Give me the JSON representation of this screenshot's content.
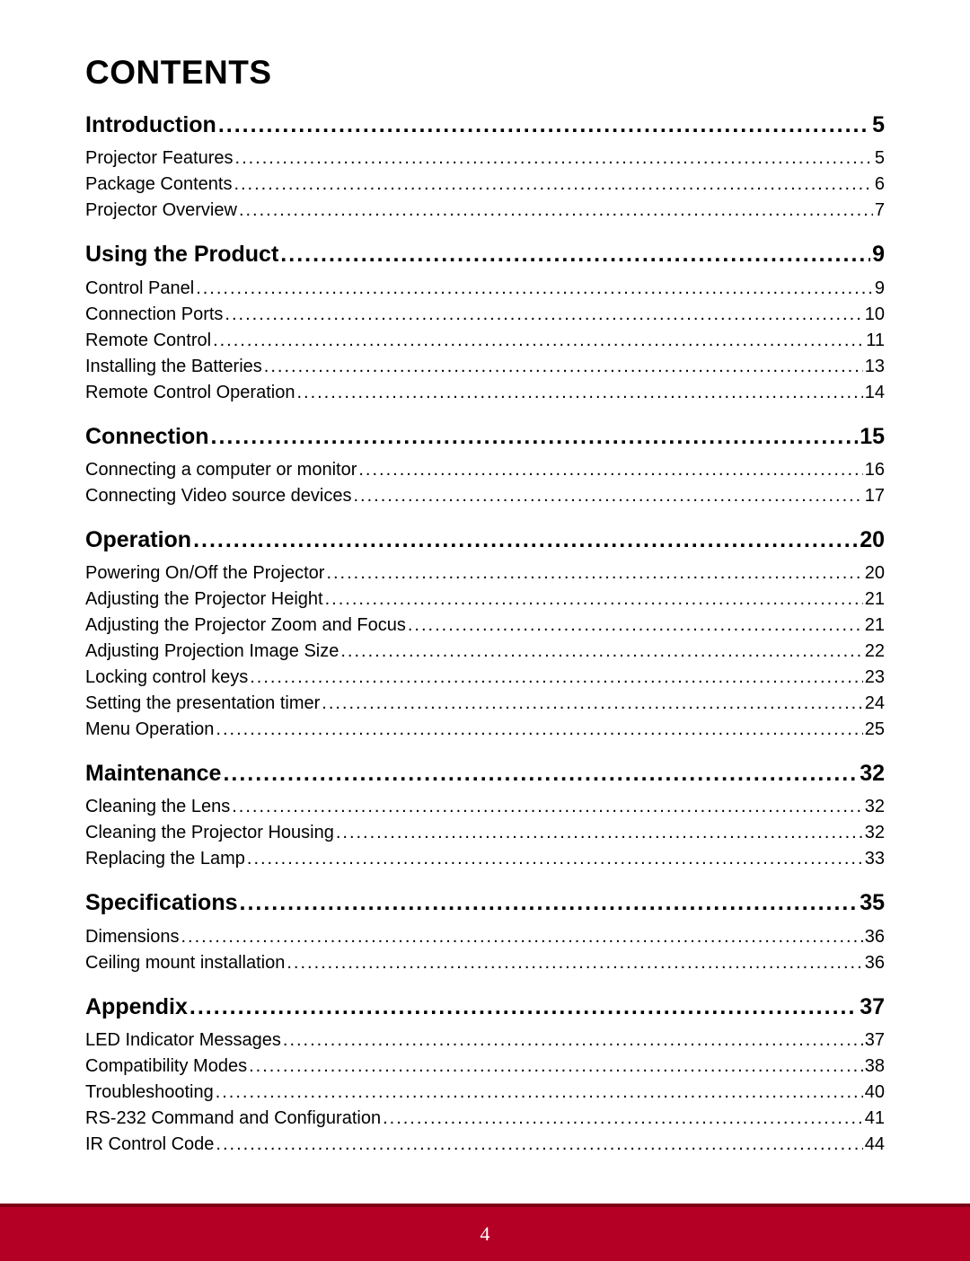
{
  "title": "CONTENTS",
  "footer_page": "4",
  "colors": {
    "band": "#b50026",
    "band_shadow": "#7d0018",
    "text": "#000000",
    "footer_text": "#ffffff"
  },
  "typography": {
    "title_fontsize": 37,
    "section_fontsize": 25,
    "sub_fontsize": 20,
    "footer_fontsize": 22,
    "title_weight": "bold",
    "section_weight": "bold",
    "sub_weight": "normal"
  },
  "sections": [
    {
      "label": "Introduction",
      "page": "5",
      "items": [
        {
          "label": "Projector Features",
          "page": "5"
        },
        {
          "label": "Package Contents",
          "page": "6"
        },
        {
          "label": "Projector Overview",
          "page": "7"
        }
      ]
    },
    {
      "label": "Using the Product",
      "page": "9",
      "items": [
        {
          "label": "Control Panel",
          "page": "9"
        },
        {
          "label": "Connection Ports",
          "page": "10"
        },
        {
          "label": "Remote Control",
          "page": "11"
        },
        {
          "label": "Installing the Batteries",
          "page": "13"
        },
        {
          "label": "Remote Control Operation",
          "page": "14"
        }
      ]
    },
    {
      "label": "Connection",
      "page": "15",
      "items": [
        {
          "label": "Connecting a computer or monitor",
          "page": "16"
        },
        {
          "label": "Connecting Video source devices",
          "page": "17"
        }
      ]
    },
    {
      "label": "Operation",
      "page": "20",
      "items": [
        {
          "label": "Powering On/Off the Projector",
          "page": "20"
        },
        {
          "label": "Adjusting the Projector Height",
          "page": "21"
        },
        {
          "label": "Adjusting the Projector Zoom and Focus",
          "page": "21"
        },
        {
          "label": "Adjusting Projection Image Size",
          "page": "22"
        },
        {
          "label": "Locking control keys",
          "page": "23"
        },
        {
          "label": "Setting the presentation timer",
          "page": "24"
        },
        {
          "label": "Menu Operation",
          "page": "25"
        }
      ]
    },
    {
      "label": "Maintenance",
      "page": "32",
      "items": [
        {
          "label": "Cleaning the Lens",
          "page": "32"
        },
        {
          "label": "Cleaning the Projector Housing",
          "page": "32"
        },
        {
          "label": "Replacing the Lamp",
          "page": "33"
        }
      ]
    },
    {
      "label": "Specifications",
      "page": "35",
      "items": [
        {
          "label": "Dimensions",
          "page": "36"
        },
        {
          "label": "Ceiling mount installation",
          "page": "36"
        }
      ]
    },
    {
      "label": "Appendix",
      "page": "37",
      "items": [
        {
          "label": "LED Indicator Messages",
          "page": "37"
        },
        {
          "label": "Compatibility Modes",
          "page": "38"
        },
        {
          "label": "Troubleshooting",
          "page": "40"
        },
        {
          "label": "RS-232 Command and Configuration",
          "page": "41"
        },
        {
          "label": "IR Control Code",
          "page": "44"
        }
      ]
    }
  ]
}
